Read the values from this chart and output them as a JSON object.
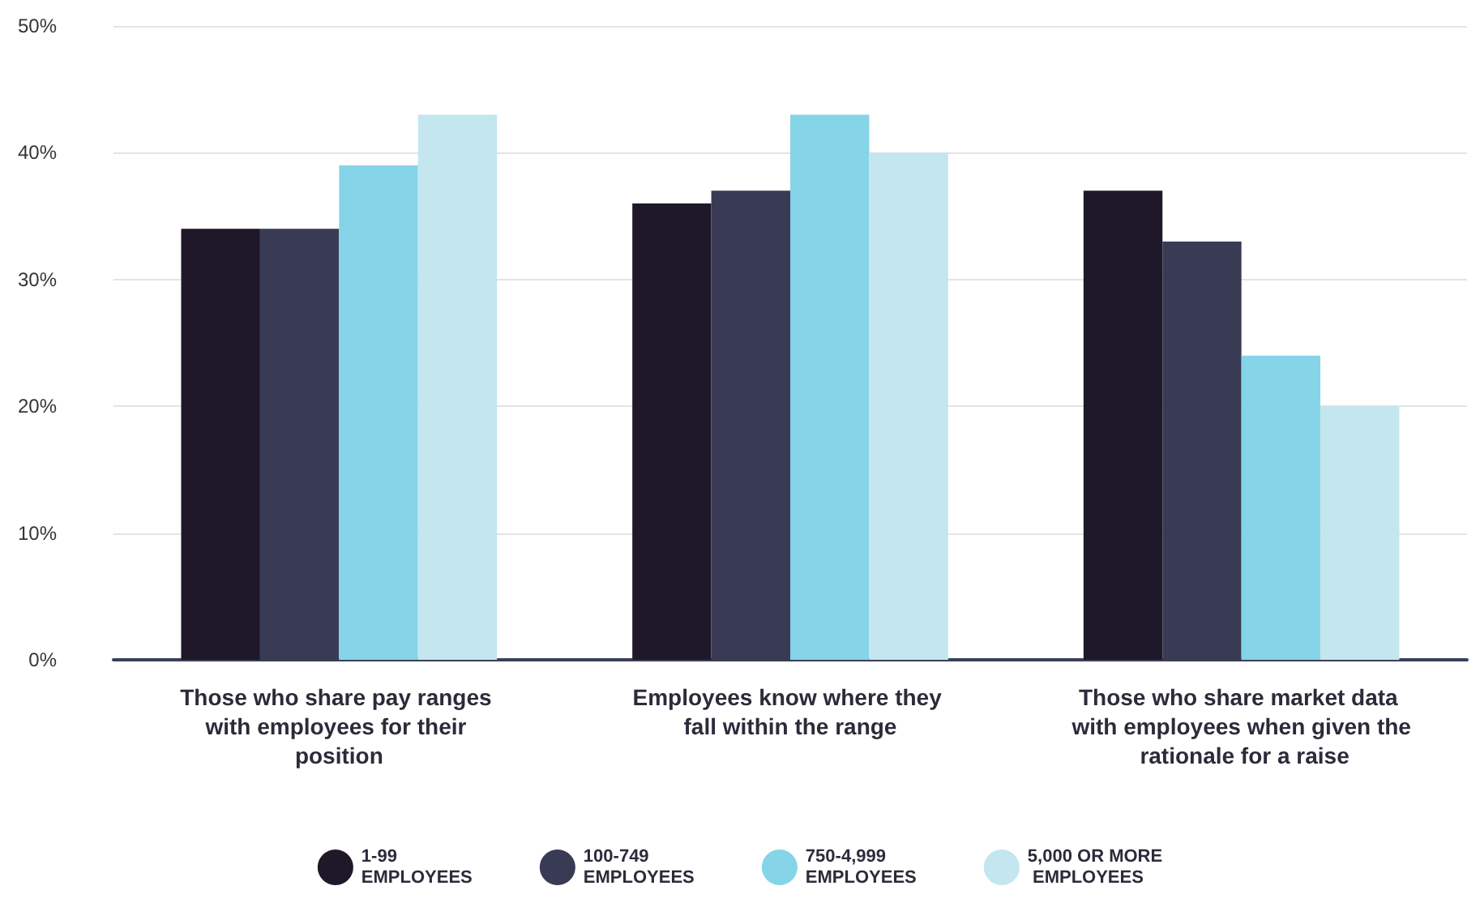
{
  "chart_data": {
    "type": "bar",
    "categories": [
      "Those who share pay ranges with employees for their position",
      "Employees know where they fall within the range",
      "Those who share market data with employees when given the rationale for a raise"
    ],
    "series": [
      {
        "name": "1-99 EMPLOYEES",
        "color": "#1f1828",
        "values": [
          34,
          36,
          37
        ]
      },
      {
        "name": "100-749 EMPLOYEES",
        "color": "#393b55",
        "values": [
          34,
          37,
          33
        ]
      },
      {
        "name": "750-4,999 EMPLOYEES",
        "color": "#86d4e8",
        "values": [
          39,
          43,
          24
        ]
      },
      {
        "name": "5,000 OR MORE EMPLOYEES",
        "color": "#c3e6ef",
        "values": [
          43,
          40,
          20
        ]
      }
    ],
    "ylim": [
      0,
      50
    ],
    "yticks": [
      {
        "value": 0,
        "label": "0%"
      },
      {
        "value": 10,
        "label": "10%"
      },
      {
        "value": 20,
        "label": "20%"
      },
      {
        "value": 30,
        "label": "30%"
      },
      {
        "value": 40,
        "label": "40%"
      },
      {
        "value": 50,
        "label": "50%"
      }
    ],
    "grid": "y",
    "legend": "bottom"
  }
}
